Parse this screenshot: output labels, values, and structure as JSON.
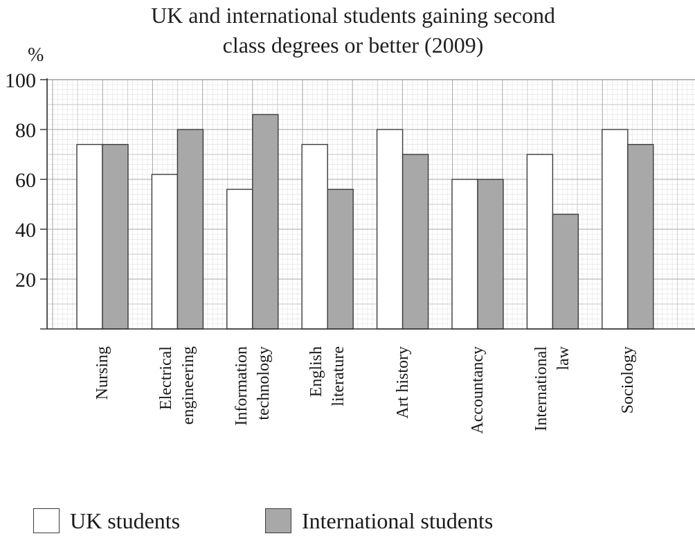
{
  "chart_data": {
    "type": "bar",
    "title": "UK and international students gaining second class degrees or better (2009)",
    "ylabel": "%",
    "ylim": [
      0,
      100
    ],
    "yticks": [
      20,
      40,
      60,
      80,
      100
    ],
    "grid": true,
    "legend": "bottom-left",
    "categories": [
      "Nursing",
      "Electrical engineering",
      "Information technology",
      "English literature",
      "Art history",
      "Accountancy",
      "International law",
      "Sociology"
    ],
    "series": [
      {
        "name": "UK students",
        "color": "#ffffff",
        "values": [
          74,
          62,
          56,
          74,
          80,
          60,
          70,
          80
        ]
      },
      {
        "name": "International students",
        "color": "#a8a8a8",
        "values": [
          74,
          80,
          86,
          56,
          70,
          60,
          46,
          74
        ]
      }
    ]
  }
}
